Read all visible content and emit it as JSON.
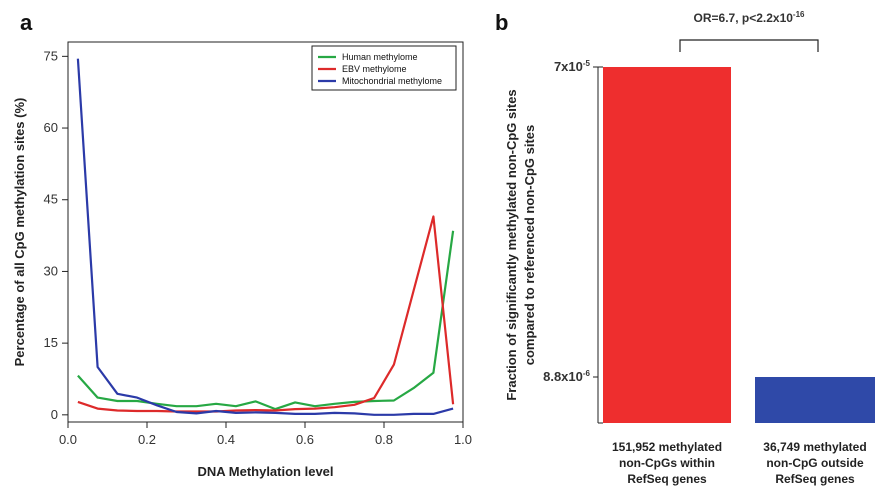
{
  "chart_data": [
    {
      "panel": "a",
      "type": "line",
      "xlabel": "DNA Methylation level",
      "ylabel": "Percentage of all CpG methylation sites (%)",
      "xlim": [
        0,
        1.0
      ],
      "ylim": [
        -1.5,
        78
      ],
      "xticks": [
        "0.0",
        "0.2",
        "0.4",
        "0.6",
        "0.8",
        "1.0"
      ],
      "yticks": [
        "0",
        "15",
        "30",
        "45",
        "60",
        "75"
      ],
      "legend_position": "top-right",
      "grid": false,
      "x": [
        0.025,
        0.075,
        0.125,
        0.175,
        0.225,
        0.275,
        0.325,
        0.375,
        0.425,
        0.475,
        0.525,
        0.575,
        0.625,
        0.675,
        0.725,
        0.775,
        0.825,
        0.875,
        0.925,
        0.975
      ],
      "series": [
        {
          "name": "Human methylome",
          "color": "#27a844",
          "values": [
            8.2,
            3.6,
            2.9,
            2.9,
            2.3,
            1.8,
            1.8,
            2.3,
            1.8,
            2.8,
            1.2,
            2.6,
            1.8,
            2.3,
            2.7,
            2.9,
            3.0,
            5.6,
            8.8,
            38.5
          ]
        },
        {
          "name": "EBV methylome",
          "color": "#dd2a2a",
          "values": [
            2.7,
            1.3,
            0.9,
            0.8,
            0.8,
            0.7,
            0.7,
            0.7,
            0.9,
            1.0,
            0.9,
            1.2,
            1.3,
            1.6,
            2.1,
            3.5,
            10.5,
            26.0,
            41.5,
            2.2
          ]
        },
        {
          "name": "Mitochondrial methylome",
          "color": "#2b3aa8",
          "values": [
            74.5,
            10.0,
            4.4,
            3.6,
            2.0,
            0.6,
            0.3,
            0.8,
            0.4,
            0.5,
            0.4,
            0.2,
            0.2,
            0.4,
            0.3,
            0.0,
            0.0,
            0.2,
            0.2,
            1.3
          ]
        }
      ]
    },
    {
      "panel": "b",
      "type": "bar",
      "ylabel_line1": "Fraction of significantly methylated non-CpG sites",
      "ylabel_line2": "compared to referenced non-CpG sites",
      "ytick_labels": [
        {
          "value": 7e-05,
          "base": "7x10",
          "exp": "-5"
        },
        {
          "value": 8.8e-06,
          "base": "8.8x10",
          "exp": "-6"
        }
      ],
      "ylim": [
        0,
        7.5e-05
      ],
      "annotation": {
        "prefix": "OR=6.7, p<2.2x10",
        "exp": "-16"
      },
      "bars": [
        {
          "label_lines": [
            "151,952 methylated",
            "non-CpGs within",
            "RefSeq genes"
          ],
          "value": 7e-05,
          "color": "#ee2e2e"
        },
        {
          "label_lines": [
            "36,749 methylated",
            "non-CpG outside",
            "RefSeq genes"
          ],
          "value": 8.8e-06,
          "color": "#2f49a8"
        }
      ]
    }
  ],
  "panels": {
    "a": "a",
    "b": "b"
  }
}
